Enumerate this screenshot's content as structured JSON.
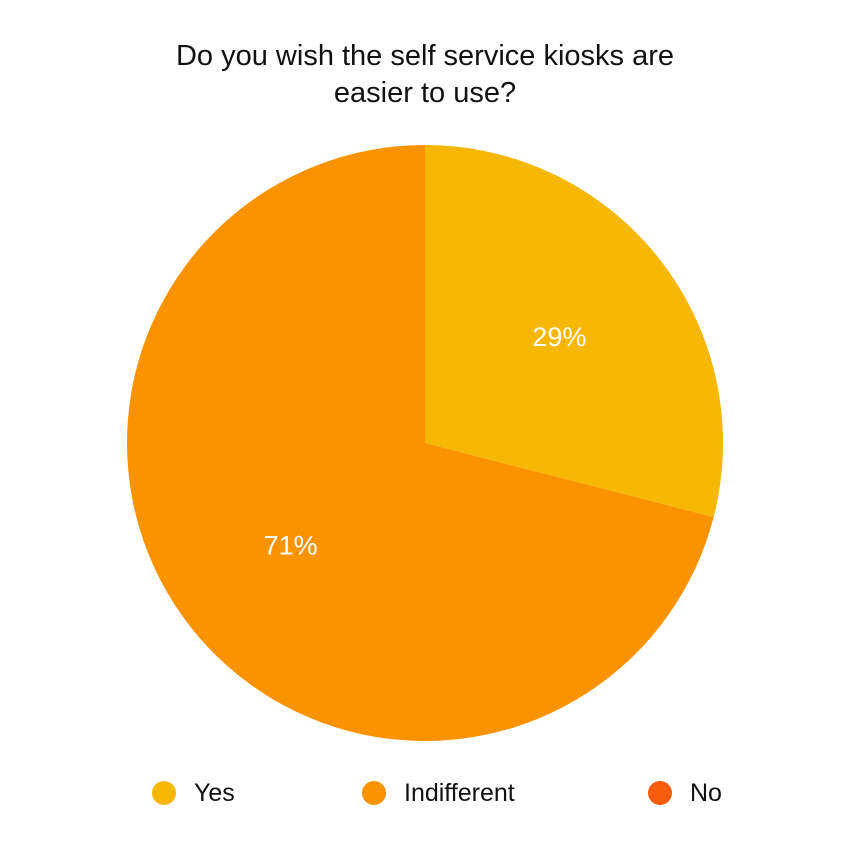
{
  "chart_data": {
    "type": "pie",
    "title_lines": [
      "Do you wish the self service kiosks are",
      "easier to use?"
    ],
    "slices": [
      {
        "name": "Yes",
        "value": 29,
        "label": "29%",
        "color": "#F7B705"
      },
      {
        "name": "Indifferent",
        "value": 71,
        "label": "71%",
        "color": "#FB9200"
      },
      {
        "name": "No",
        "value": 0,
        "label": "",
        "color": "#F95C0C"
      }
    ],
    "legend": {
      "placement": "bottom",
      "entries": [
        {
          "name": "Yes",
          "color": "#F7B705"
        },
        {
          "name": "Indifferent",
          "color": "#FB9200"
        },
        {
          "name": "No",
          "color": "#F95C0C"
        }
      ]
    }
  }
}
